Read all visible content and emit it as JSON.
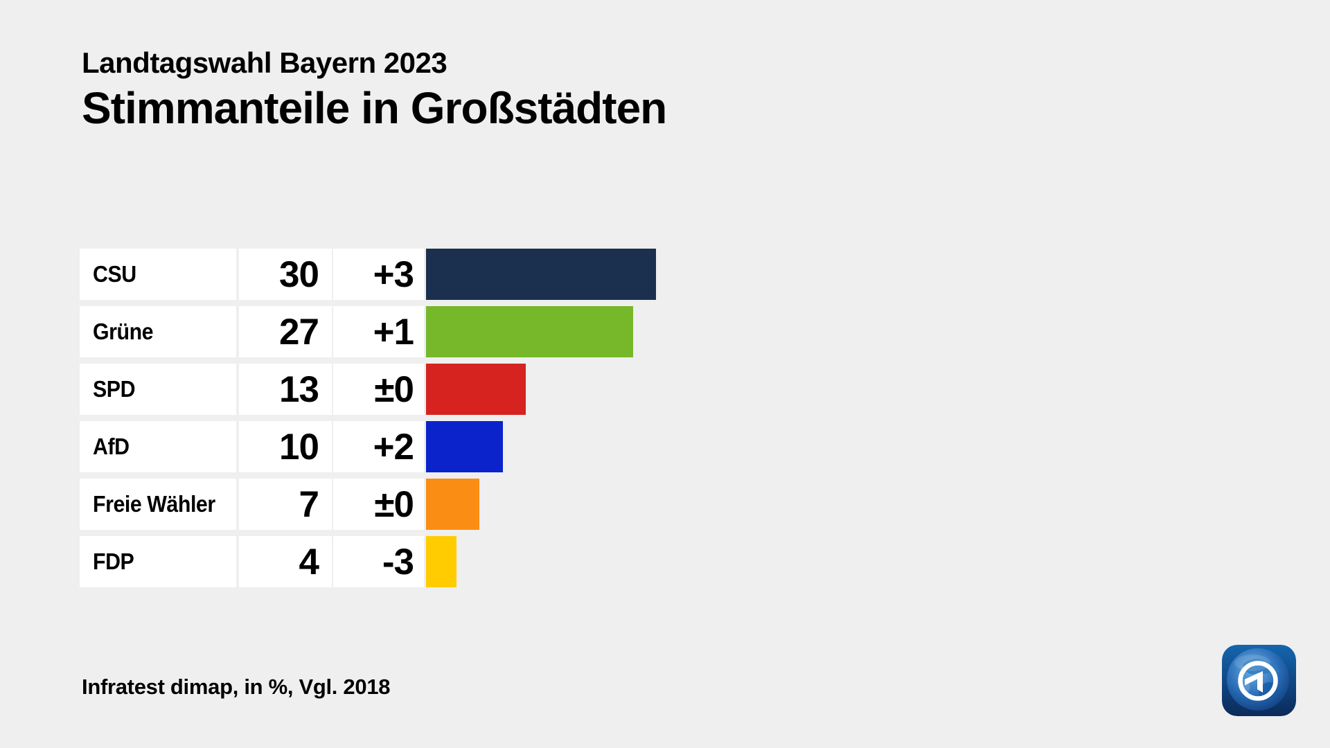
{
  "header": {
    "kicker": "Landtagswahl Bayern 2023",
    "title": "Stimmanteile in Großstädten"
  },
  "chart_data": {
    "type": "bar",
    "orientation": "horizontal",
    "title": "Stimmanteile in Großstädten",
    "subtitle": "Landtagswahl Bayern 2023",
    "unit": "%",
    "comparison": "Vgl. 2018",
    "xlim": [
      0,
      30
    ],
    "categories": [
      "CSU",
      "Grüne",
      "SPD",
      "AfD",
      "Freie Wähler",
      "FDP"
    ],
    "values": [
      30,
      27,
      13,
      10,
      7,
      4
    ],
    "changes": [
      "+3",
      "+1",
      "±0",
      "+2",
      "±0",
      "-3"
    ],
    "bar_colors": [
      "#1b2f4f",
      "#76b82a",
      "#d62320",
      "#0b23cb",
      "#fa8e14",
      "#ffcc02"
    ]
  },
  "footer": {
    "source": "Infratest dimap, in %, Vgl. 2018"
  },
  "logo": {
    "name": "ARD tagesschau",
    "background_top": "#1566ae",
    "background_bottom": "#0b2a5a"
  }
}
